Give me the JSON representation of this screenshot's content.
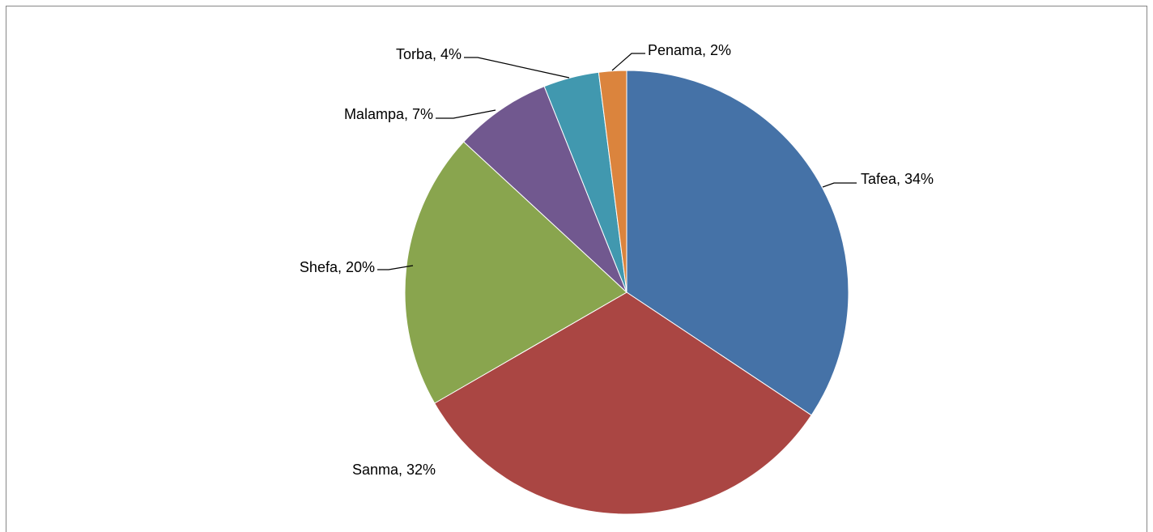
{
  "chart_data": {
    "type": "pie",
    "values": [
      34,
      32,
      20,
      7,
      4,
      2
    ],
    "value_labels": [
      "Tafea, 34%",
      "Sanma, 32%",
      "Shefa, 20%",
      "Malampa, 7%",
      "Torba, 4%",
      "Penama, 2%"
    ],
    "colors": [
      "#4572A7",
      "#AA4643",
      "#89A54E",
      "#71588F",
      "#4198AF",
      "#DB843D"
    ]
  }
}
